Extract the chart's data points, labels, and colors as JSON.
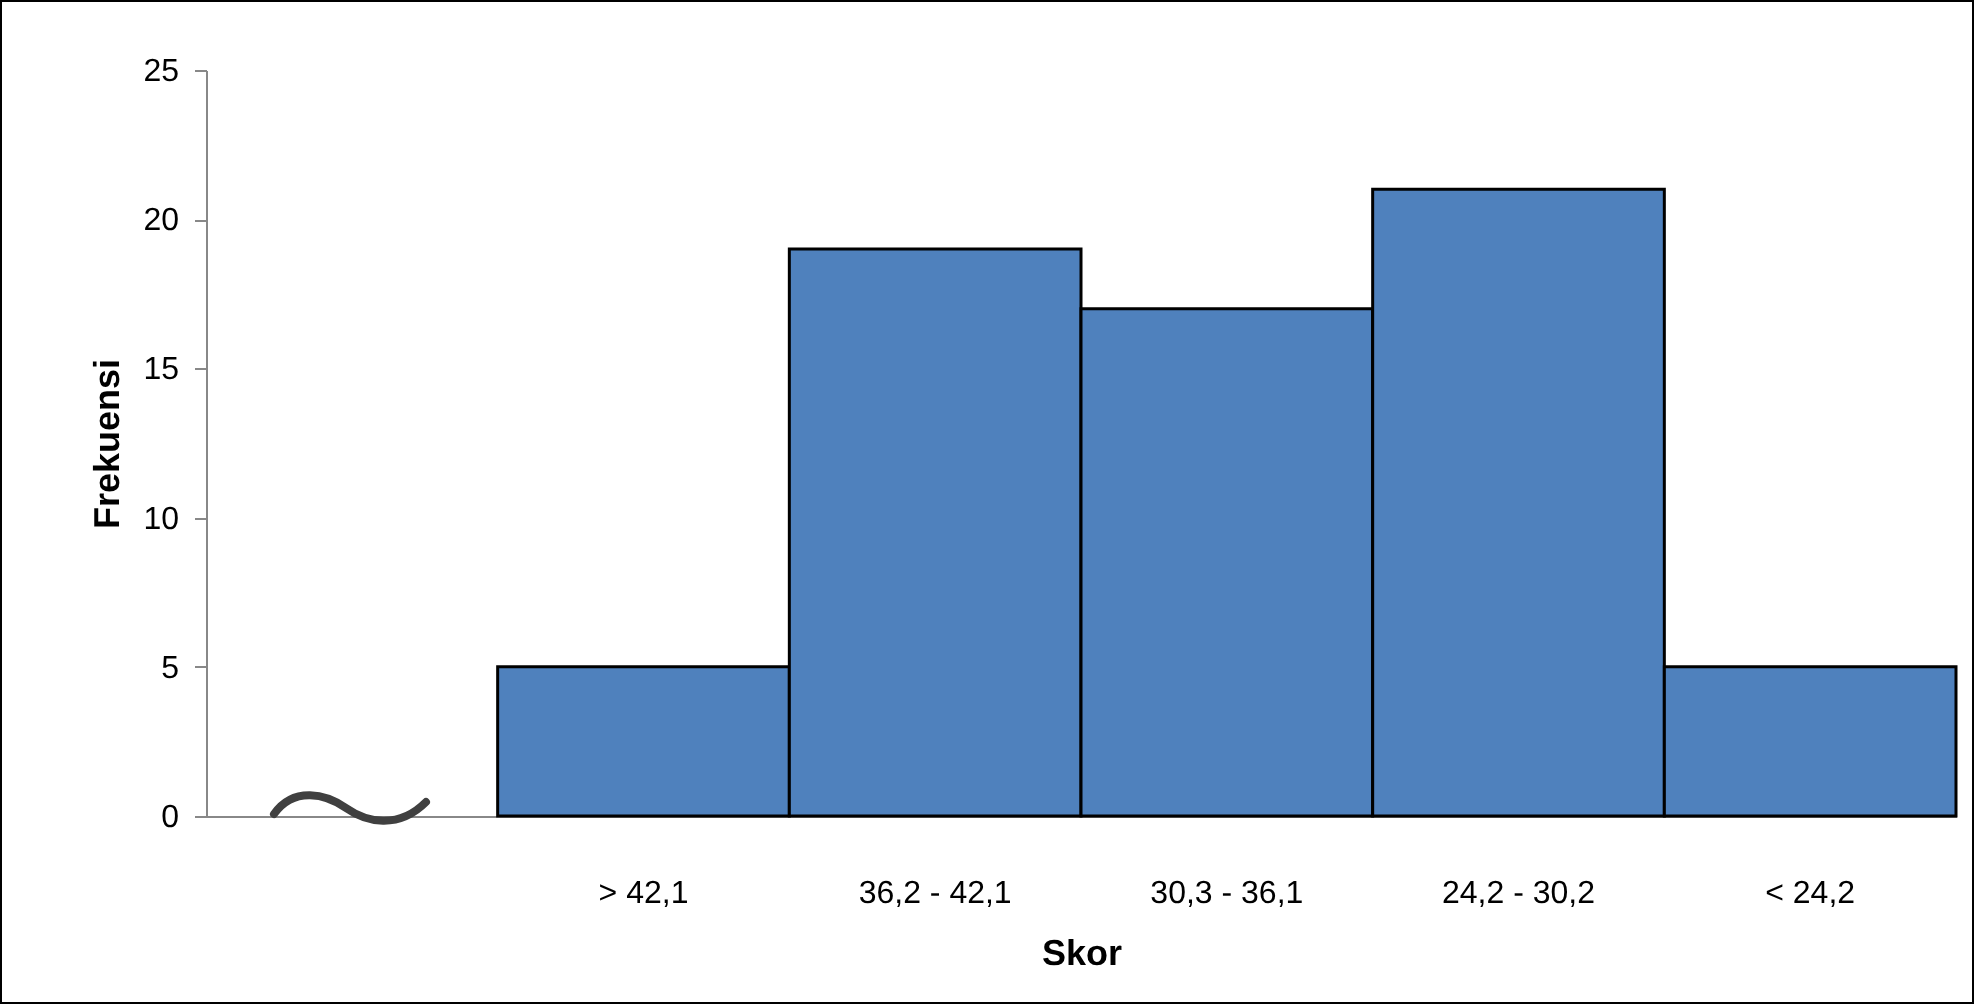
{
  "chart_data": {
    "type": "bar",
    "xlabel": "Skor",
    "ylabel": "Frekuensi",
    "categories": [
      null,
      "> 42,1",
      "36,2 - 42,1",
      "30,3 - 36,1",
      "24,2 - 30,2",
      "< 24,2"
    ],
    "values": [
      null,
      5,
      19,
      17,
      21,
      5
    ],
    "color": "#4f81bd",
    "ylim": [
      0,
      25
    ],
    "yticks": [
      0,
      5,
      10,
      15,
      20,
      25
    ],
    "grid": false,
    "legend": false
  }
}
